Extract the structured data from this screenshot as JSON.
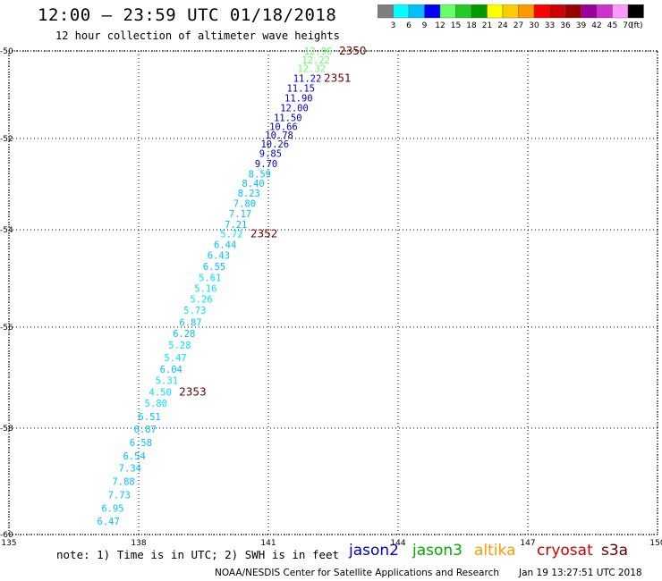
{
  "header": {
    "title": "12:00 – 23:59 UTC 01/18/2018",
    "subtitle": "12 hour collection of altimeter wave heights"
  },
  "colorbar": {
    "colors": [
      "#7f7f7f",
      "#00ffff",
      "#00bfff",
      "#0000ff",
      "#66ff66",
      "#22cc22",
      "#009900",
      "#ffff00",
      "#ffcc00",
      "#ff9900",
      "#ff0000",
      "#cc0000",
      "#990000",
      "#990099",
      "#cc33cc",
      "#ff99ff",
      "#000000"
    ],
    "labels": [
      "3",
      "6",
      "9",
      "12",
      "15",
      "18",
      "21",
      "24",
      "27",
      "30",
      "33",
      "36",
      "39",
      "42",
      "45",
      "70"
    ],
    "unit": "(ft)"
  },
  "map": {
    "lat_labels": [
      "-50",
      "-52",
      "-54",
      "-56",
      "-58",
      "-60"
    ],
    "lon_labels": [
      "135",
      "138",
      "141",
      "144",
      "147",
      "150"
    ],
    "lat_values": [
      -50,
      -52,
      -54,
      -56,
      -58,
      -60
    ],
    "lon_values": [
      135,
      138,
      141,
      144,
      147,
      150
    ]
  },
  "chart_data": {
    "type": "scatter",
    "x_axis": "longitude (deg E)",
    "y_axis": "latitude (deg)",
    "wave_heights_ft": [
      {
        "lat": -50.0,
        "lon": 142.15,
        "v": "12.96",
        "c": "#66ff66"
      },
      {
        "lat": -50.2,
        "lon": 142.1,
        "v": "12.22",
        "c": "#66ff66"
      },
      {
        "lat": -50.4,
        "lon": 142.0,
        "v": "12.32",
        "c": "#66ff66"
      },
      {
        "lat": -50.62,
        "lon": 141.9,
        "v": "11.22",
        "c": "#0000cc"
      },
      {
        "lat": -50.85,
        "lon": 141.75,
        "v": "11.15",
        "c": "#0000cc"
      },
      {
        "lat": -51.07,
        "lon": 141.7,
        "v": "11.90",
        "c": "#0000cc"
      },
      {
        "lat": -51.3,
        "lon": 141.6,
        "v": "12.00",
        "c": "#0000cc"
      },
      {
        "lat": -51.52,
        "lon": 141.45,
        "v": "11.50",
        "c": "#0000cc"
      },
      {
        "lat": -51.72,
        "lon": 141.35,
        "v": "10.66",
        "c": "#0000cc"
      },
      {
        "lat": -51.92,
        "lon": 141.25,
        "v": "10.78",
        "c": "#0000cc"
      },
      {
        "lat": -52.12,
        "lon": 141.15,
        "v": "10.26",
        "c": "#0000cc"
      },
      {
        "lat": -52.32,
        "lon": 141.05,
        "v": "9.85",
        "c": "#0000cc"
      },
      {
        "lat": -52.55,
        "lon": 140.95,
        "v": "9.70",
        "c": "#0000cc"
      },
      {
        "lat": -52.77,
        "lon": 140.8,
        "v": "8.59",
        "c": "#00bfff"
      },
      {
        "lat": -52.98,
        "lon": 140.65,
        "v": "8.40",
        "c": "#00bfff"
      },
      {
        "lat": -53.2,
        "lon": 140.55,
        "v": "8.23",
        "c": "#00bfff"
      },
      {
        "lat": -53.42,
        "lon": 140.45,
        "v": "7.80",
        "c": "#00bfff"
      },
      {
        "lat": -53.65,
        "lon": 140.35,
        "v": "7.17",
        "c": "#00bfff"
      },
      {
        "lat": -53.88,
        "lon": 140.25,
        "v": "7.21",
        "c": "#00bfff"
      },
      {
        "lat": -54.08,
        "lon": 140.15,
        "v": "5.72",
        "c": "#00e5ff"
      },
      {
        "lat": -54.3,
        "lon": 140.0,
        "v": "6.44",
        "c": "#00bfff"
      },
      {
        "lat": -54.52,
        "lon": 139.85,
        "v": "6.43",
        "c": "#00bfff"
      },
      {
        "lat": -54.75,
        "lon": 139.75,
        "v": "6.55",
        "c": "#00bfff"
      },
      {
        "lat": -54.98,
        "lon": 139.65,
        "v": "5.61",
        "c": "#00e5ff"
      },
      {
        "lat": -55.2,
        "lon": 139.55,
        "v": "5.16",
        "c": "#00e5ff"
      },
      {
        "lat": -55.42,
        "lon": 139.45,
        "v": "5.26",
        "c": "#00e5ff"
      },
      {
        "lat": -55.65,
        "lon": 139.3,
        "v": "5.73",
        "c": "#00e5ff"
      },
      {
        "lat": -55.9,
        "lon": 139.2,
        "v": "6.87",
        "c": "#00bfff"
      },
      {
        "lat": -56.12,
        "lon": 139.05,
        "v": "6.28",
        "c": "#00bfff"
      },
      {
        "lat": -56.35,
        "lon": 138.95,
        "v": "5.28",
        "c": "#00e5ff"
      },
      {
        "lat": -56.6,
        "lon": 138.85,
        "v": "5.47",
        "c": "#00e5ff"
      },
      {
        "lat": -56.83,
        "lon": 138.75,
        "v": "6.04",
        "c": "#00bfff"
      },
      {
        "lat": -57.05,
        "lon": 138.65,
        "v": "5.31",
        "c": "#00e5ff"
      },
      {
        "lat": -57.28,
        "lon": 138.5,
        "v": "4.50",
        "c": "#00e5ff"
      },
      {
        "lat": -57.5,
        "lon": 138.4,
        "v": "5.80",
        "c": "#00e5ff"
      },
      {
        "lat": -57.77,
        "lon": 138.25,
        "v": "6.51",
        "c": "#00bfff"
      },
      {
        "lat": -58.02,
        "lon": 138.15,
        "v": "6.87",
        "c": "#00bfff"
      },
      {
        "lat": -58.27,
        "lon": 138.05,
        "v": "6.58",
        "c": "#00bfff"
      },
      {
        "lat": -58.52,
        "lon": 137.9,
        "v": "6.54",
        "c": "#00bfff"
      },
      {
        "lat": -58.75,
        "lon": 137.8,
        "v": "7.34",
        "c": "#00bfff"
      },
      {
        "lat": -59.0,
        "lon": 137.65,
        "v": "7.88",
        "c": "#00bfff"
      },
      {
        "lat": -59.25,
        "lon": 137.55,
        "v": "7.73",
        "c": "#00bfff"
      },
      {
        "lat": -59.5,
        "lon": 137.4,
        "v": "6.95",
        "c": "#00bfff"
      },
      {
        "lat": -59.75,
        "lon": 137.3,
        "v": "6.47",
        "c": "#00bfff"
      }
    ],
    "pass_times": [
      {
        "lat": -50.0,
        "lon": 142.95,
        "t": "2350"
      },
      {
        "lat": -50.62,
        "lon": 142.6,
        "t": "2351"
      },
      {
        "lat": -54.08,
        "lon": 140.9,
        "t": "2352"
      },
      {
        "lat": -57.28,
        "lon": 139.25,
        "t": "2353"
      }
    ]
  },
  "footer": {
    "note": "note: 1) Time is in UTC; 2) SWH is in feet",
    "satellites": [
      {
        "name": "jason2",
        "color": "#0000cc"
      },
      {
        "name": "jason3",
        "color": "#00aa00"
      },
      {
        "name": "altika",
        "color": "#ff9900"
      },
      {
        "name": "cryosat",
        "color": "#cc0000"
      },
      {
        "name": "s3a",
        "color": "#660000"
      }
    ],
    "credit": "NOAA/NESDIS Center for Satellite Applications and Research",
    "timestamp": "Jan 19 13:27:51 UTC 2018"
  }
}
